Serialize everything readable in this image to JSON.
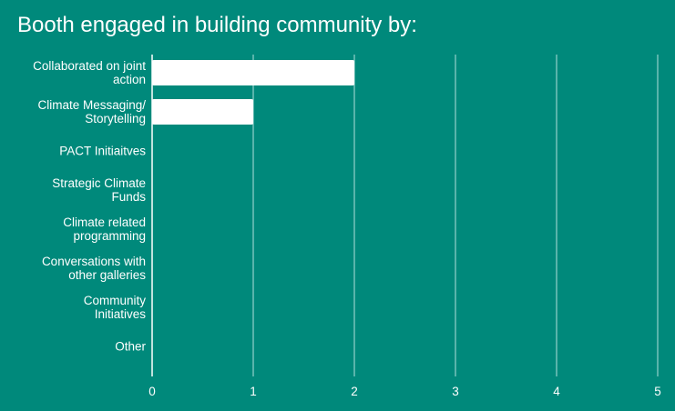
{
  "chart_data": {
    "type": "bar",
    "orientation": "horizontal",
    "title": "Booth engaged in building community by:",
    "categories": [
      [
        "Collaborated on joint",
        "action"
      ],
      [
        "Climate Messaging/",
        "Storytelling"
      ],
      [
        "PACT Initiaitves"
      ],
      [
        "Strategic Climate",
        "Funds"
      ],
      [
        "Climate related",
        "programming"
      ],
      [
        "Conversations with",
        "other galleries"
      ],
      [
        "Community",
        "Initiatives"
      ],
      [
        "Other"
      ]
    ],
    "values": [
      2,
      1,
      0,
      0,
      0,
      0,
      0,
      0
    ],
    "xlim": [
      0,
      5
    ],
    "x_ticks": [
      "0",
      "1",
      "2",
      "3",
      "4",
      "5"
    ],
    "xlabel": "",
    "ylabel": "",
    "grid": true,
    "legend": "none",
    "colors": {
      "background": "#00897b",
      "bar": "#ffffff",
      "grid": "#b2dfdb",
      "text": "#ffffff"
    }
  }
}
